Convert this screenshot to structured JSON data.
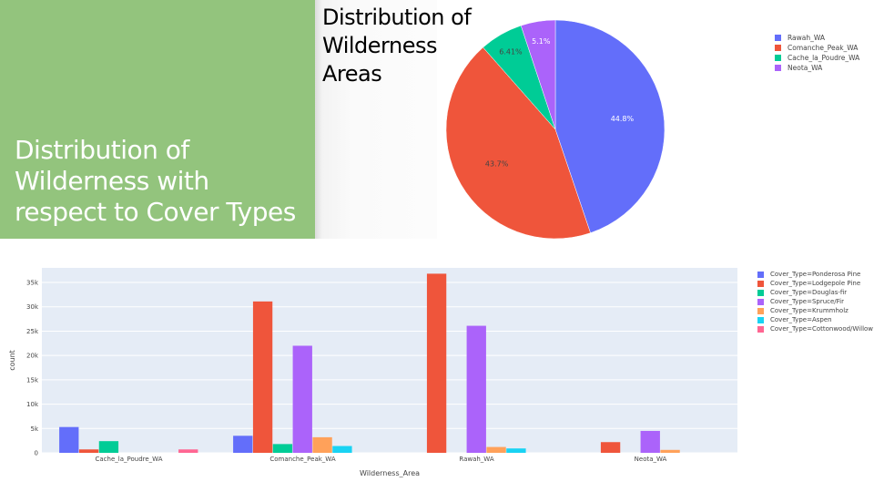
{
  "slide": {
    "left_title": "Distribution of Wilderness  with respect to Cover  Types",
    "pie_title": "Distribution of Wilderness Areas"
  },
  "chart_data": [
    {
      "type": "pie",
      "labels": [
        "Rawah_WA",
        "Comanche_Peak_WA",
        "Cache_la_Poudre_WA",
        "Neota_WA"
      ],
      "values": [
        44.8,
        43.7,
        6.41,
        5.1
      ],
      "value_labels": [
        "44.8%",
        "43.7%",
        "6.41%",
        "5.1%"
      ],
      "colors": [
        "#636efa",
        "#ef553b",
        "#00cc96",
        "#ab63fa"
      ],
      "legend": "right"
    },
    {
      "type": "bar",
      "xlabel": "Wilderness_Area",
      "ylabel": "count",
      "categories": [
        "Cache_la_Poudre_WA",
        "Comanche_Peak_WA",
        "Rawah_WA",
        "Neota_WA"
      ],
      "ylim": [
        0,
        38000
      ],
      "yticks": [
        0,
        5000,
        10000,
        15000,
        20000,
        25000,
        30000,
        35000
      ],
      "ytick_labels": [
        "0",
        "5k",
        "10k",
        "15k",
        "20k",
        "25k",
        "30k",
        "35k"
      ],
      "grid": true,
      "legend": "right",
      "series": [
        {
          "name": "Cover_Type=Ponderosa Pine",
          "color": "#636efa",
          "values": [
            5300,
            3500,
            0,
            0
          ]
        },
        {
          "name": "Cover_Type=Lodgepole Pine",
          "color": "#ef553b",
          "values": [
            700,
            31100,
            36800,
            2200
          ]
        },
        {
          "name": "Cover_Type=Douglas-fir",
          "color": "#00cc96",
          "values": [
            2400,
            1800,
            0,
            0
          ]
        },
        {
          "name": "Cover_Type=Spruce/Fir",
          "color": "#ab63fa",
          "values": [
            0,
            22000,
            26100,
            4500
          ]
        },
        {
          "name": "Cover_Type=Krummholz",
          "color": "#ffa15a",
          "values": [
            0,
            3200,
            1200,
            600
          ]
        },
        {
          "name": "Cover_Type=Aspen",
          "color": "#19d3f3",
          "values": [
            0,
            1400,
            900,
            0
          ]
        },
        {
          "name": "Cover_Type=Cottonwood/Willow",
          "color": "#ff6692",
          "values": [
            700,
            0,
            0,
            0
          ]
        }
      ]
    }
  ]
}
